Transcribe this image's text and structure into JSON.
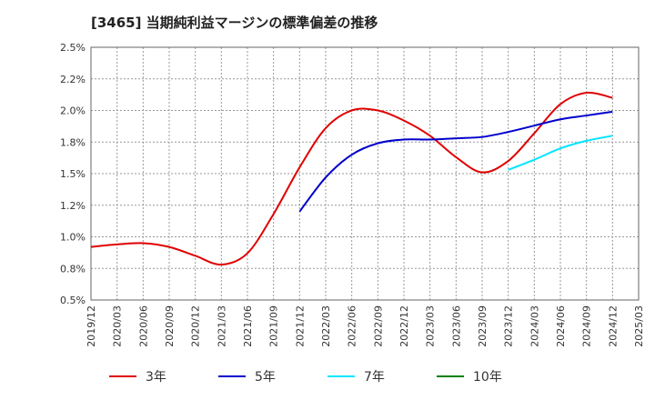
{
  "title": "[3465]  当期純利益マージンの標準偏差の推移",
  "chart_data": {
    "type": "line",
    "title": "[3465]  当期純利益マージンの標準偏差の推移",
    "xlabel": "",
    "ylabel": "",
    "ylim": [
      0.5,
      2.5
    ],
    "grid": true,
    "legend_position": "bottom",
    "x_tick_labels": [
      "2019/12",
      "2020/03",
      "2020/06",
      "2020/09",
      "2020/12",
      "2021/03",
      "2021/06",
      "2021/09",
      "2021/12",
      "2022/03",
      "2022/06",
      "2022/09",
      "2022/12",
      "2023/03",
      "2023/06",
      "2023/09",
      "2023/12",
      "2024/03",
      "2024/06",
      "2024/09",
      "2024/12",
      "2025/03"
    ],
    "y_ticks": [
      0.5,
      0.75,
      1.0,
      1.25,
      1.5,
      1.75,
      2.0,
      2.25,
      2.5
    ],
    "y_tick_labels": [
      "0.5%",
      "0.8%",
      "1.0%",
      "1.2%",
      "1.5%",
      "1.8%",
      "2.0%",
      "2.2%",
      "2.5%"
    ],
    "series": [
      {
        "name": "3年",
        "color": "#e00000",
        "points": [
          [
            "2019/12",
            0.92
          ],
          [
            "2020/03",
            0.94
          ],
          [
            "2020/06",
            0.95
          ],
          [
            "2020/09",
            0.92
          ],
          [
            "2020/12",
            0.85
          ],
          [
            "2021/03",
            0.78
          ],
          [
            "2021/06",
            0.87
          ],
          [
            "2021/09",
            1.18
          ],
          [
            "2021/12",
            1.55
          ],
          [
            "2022/03",
            1.86
          ],
          [
            "2022/06",
            2.0
          ],
          [
            "2022/09",
            2.0
          ],
          [
            "2022/12",
            1.92
          ],
          [
            "2023/03",
            1.8
          ],
          [
            "2023/06",
            1.63
          ],
          [
            "2023/09",
            1.51
          ],
          [
            "2023/12",
            1.6
          ],
          [
            "2024/03",
            1.82
          ],
          [
            "2024/06",
            2.05
          ],
          [
            "2024/09",
            2.14
          ],
          [
            "2024/12",
            2.1
          ]
        ]
      },
      {
        "name": "5年",
        "color": "#0000cc",
        "points": [
          [
            "2021/12",
            1.2
          ],
          [
            "2022/03",
            1.47
          ],
          [
            "2022/06",
            1.65
          ],
          [
            "2022/09",
            1.74
          ],
          [
            "2022/12",
            1.77
          ],
          [
            "2023/03",
            1.77
          ],
          [
            "2023/06",
            1.78
          ],
          [
            "2023/09",
            1.79
          ],
          [
            "2023/12",
            1.83
          ],
          [
            "2024/03",
            1.88
          ],
          [
            "2024/06",
            1.93
          ],
          [
            "2024/09",
            1.96
          ],
          [
            "2024/12",
            1.99
          ]
        ]
      },
      {
        "name": "7年",
        "color": "#00e5ff",
        "points": [
          [
            "2023/12",
            1.53
          ],
          [
            "2024/03",
            1.61
          ],
          [
            "2024/06",
            1.7
          ],
          [
            "2024/09",
            1.76
          ],
          [
            "2024/12",
            1.8
          ]
        ]
      },
      {
        "name": "10年",
        "color": "#008000",
        "points": []
      }
    ]
  }
}
